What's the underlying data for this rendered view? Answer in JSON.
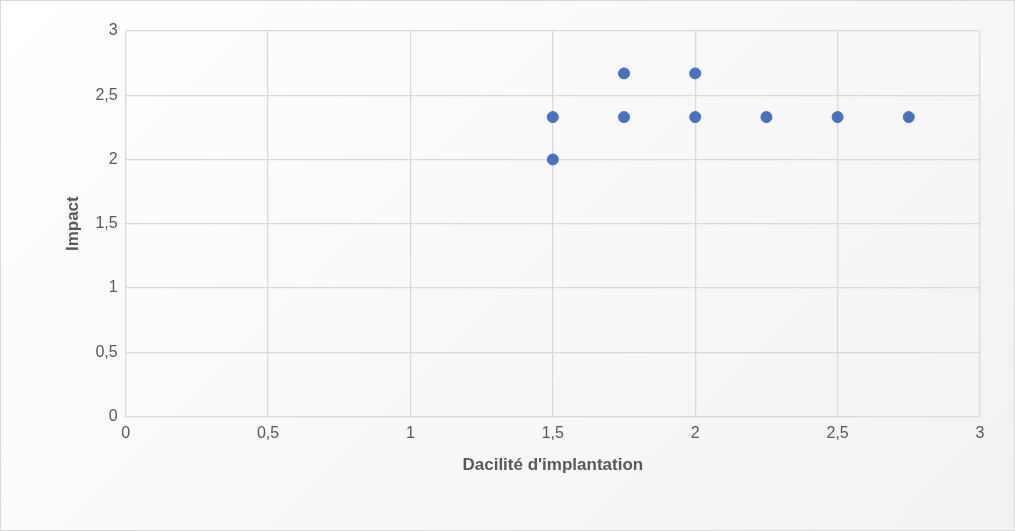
{
  "chart_data": {
    "type": "scatter",
    "xlabel": "Dacilité d'implantation",
    "ylabel": "Impact",
    "x": [
      1.5,
      1.5,
      1.75,
      1.75,
      2,
      2,
      2.25,
      2.5,
      2.75
    ],
    "series": [
      {
        "color": "#4472c4",
        "values": [
          2.33,
          2,
          2.67,
          2.33,
          2.67,
          2.33,
          2.33,
          2.33,
          2.33
        ]
      }
    ],
    "xlim": [
      0,
      3
    ],
    "xticks": [
      {
        "value": 0,
        "label": "0"
      },
      {
        "value": 0.5,
        "label": "0,5"
      },
      {
        "value": 1,
        "label": "1"
      },
      {
        "value": 1.5,
        "label": "1,5"
      },
      {
        "value": 2,
        "label": "2"
      },
      {
        "value": 2.5,
        "label": "2,5"
      },
      {
        "value": 3,
        "label": "3"
      }
    ],
    "ylim": [
      0,
      3
    ],
    "yticks": [
      {
        "value": 0,
        "label": "0"
      },
      {
        "value": 0.5,
        "label": "0,5"
      },
      {
        "value": 1,
        "label": "1"
      },
      {
        "value": 1.5,
        "label": "1,5"
      },
      {
        "value": 2,
        "label": "2"
      },
      {
        "value": 2.5,
        "label": "2,5"
      },
      {
        "value": 3,
        "label": "3"
      }
    ],
    "grid": true,
    "legend": false,
    "marker": "circle"
  }
}
